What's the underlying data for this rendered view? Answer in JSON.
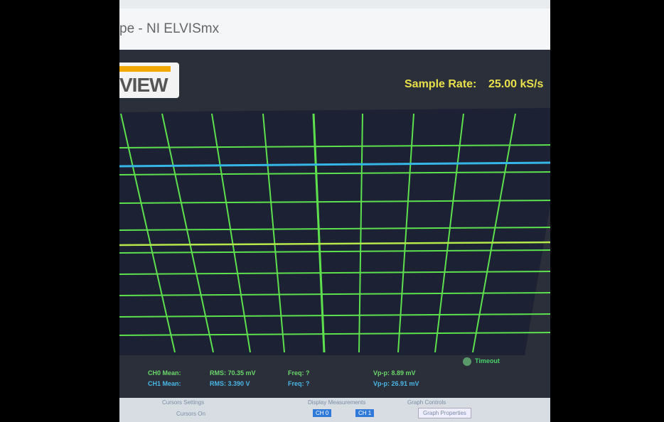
{
  "window": {
    "title": "pe - NI ELVISmx"
  },
  "header": {
    "logo": "VIEW",
    "sample_rate_label": "Sample Rate:",
    "sample_rate_value": "25.00 kS/s"
  },
  "status": "Timeout",
  "measurements": [
    {
      "channel": "CH0 Mean:",
      "rms": "RMS: 70.35 mV",
      "freq": "Freq: ?",
      "vpp": "Vp-p: 8.89 mV"
    },
    {
      "channel": "CH1 Mean:",
      "rms": "RMS: 3.390 V",
      "freq": "Freq: ?",
      "vpp": "Vp-p: 26.91 mV"
    }
  ],
  "bottom": {
    "cursors_settings": "Cursors Settings",
    "cursors_on": "Cursors On",
    "display_measurements": "Display Measurements",
    "ch0": "CH 0",
    "ch1": "CH 1",
    "graph_controls": "Graph Controls",
    "graph_properties": "Graph Properties"
  }
}
